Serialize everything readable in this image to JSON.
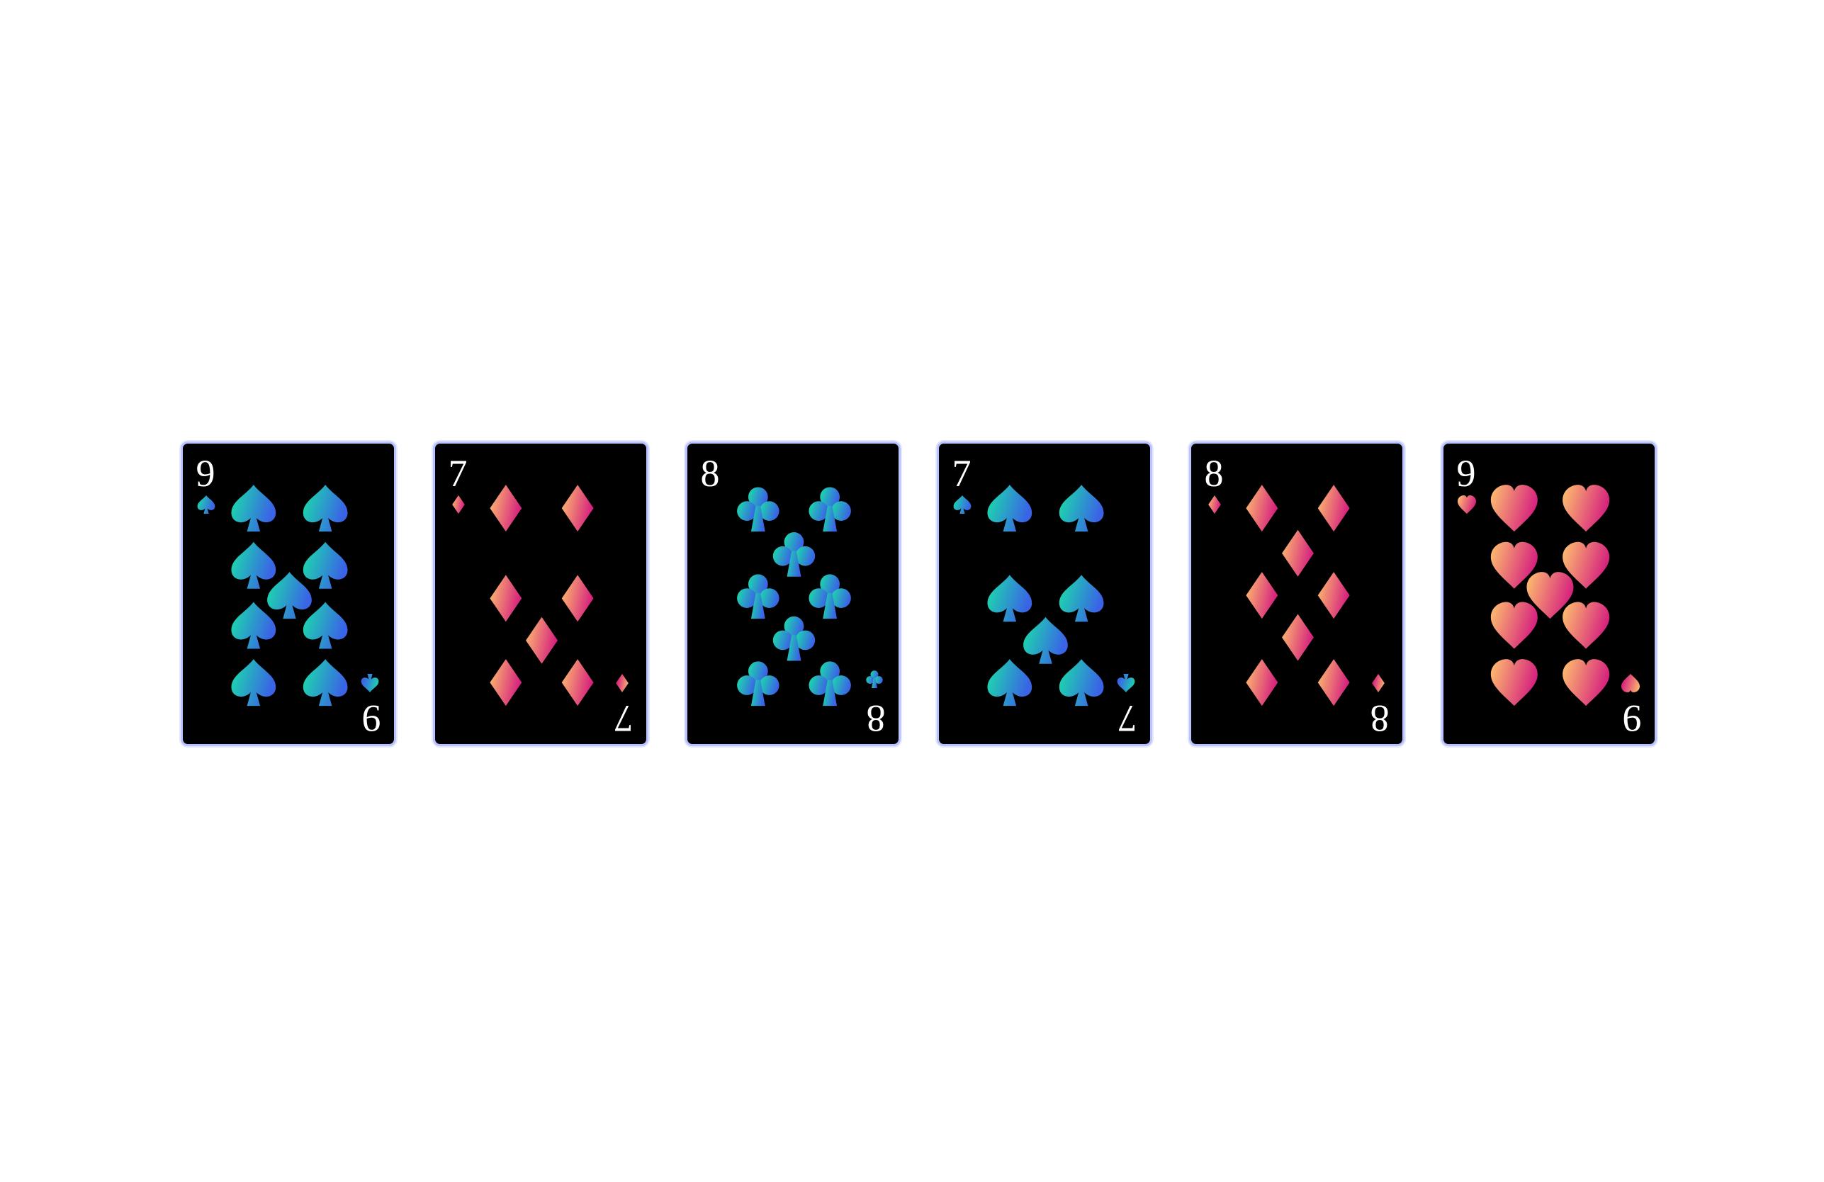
{
  "cards": [
    {
      "rank": "9",
      "suit": "spades"
    },
    {
      "rank": "7",
      "suit": "diamonds"
    },
    {
      "rank": "8",
      "suit": "clubs"
    },
    {
      "rank": "7",
      "suit": "spades"
    },
    {
      "rank": "8",
      "suit": "diamonds"
    },
    {
      "rank": "9",
      "suit": "hearts"
    }
  ],
  "colors": {
    "card_face": "#000000",
    "card_border": "#b9c3ff",
    "rank_text": "#ffffff",
    "cool_start": "#19e3a6",
    "cool_end": "#3a63e6",
    "warm_start": "#ffc46e",
    "warm_end": "#d6237e"
  }
}
